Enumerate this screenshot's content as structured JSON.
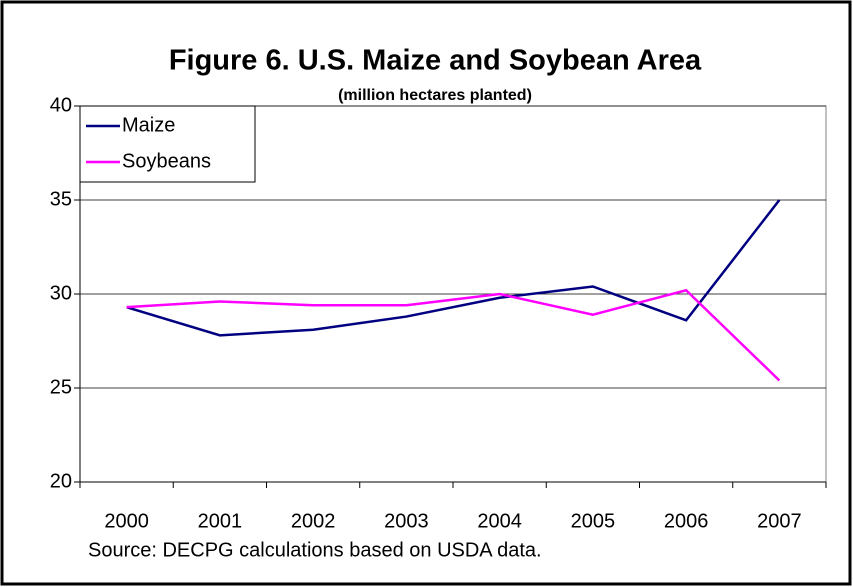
{
  "chart_data": {
    "type": "line",
    "title": "Figure 6. U.S. Maize and Soybean Area",
    "subtitle": "(million hectares planted)",
    "source": "Source: DECPG calculations based on USDA data.",
    "categories": [
      "2000",
      "2001",
      "2002",
      "2003",
      "2004",
      "2005",
      "2006",
      "2007"
    ],
    "series": [
      {
        "name": "Maize",
        "color": "#000080",
        "values": [
          29.3,
          27.8,
          28.1,
          28.8,
          29.8,
          30.4,
          28.6,
          35.0
        ]
      },
      {
        "name": "Soybeans",
        "color": "#ff00ff",
        "values": [
          29.3,
          29.6,
          29.4,
          29.4,
          30.0,
          28.9,
          30.2,
          25.4
        ]
      }
    ],
    "ylim": [
      20,
      40
    ],
    "yticks": [
      20,
      25,
      30,
      35,
      40
    ],
    "grid": true,
    "legend": "top-left"
  }
}
